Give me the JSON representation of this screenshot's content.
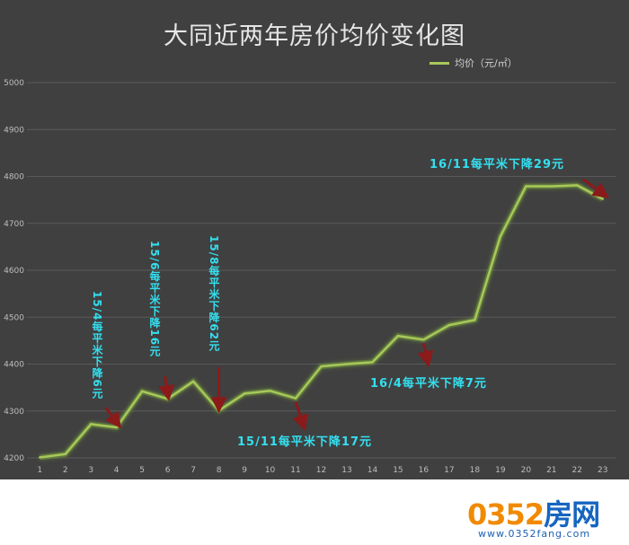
{
  "chart_data": {
    "type": "line",
    "title": "大同近两年房价均价变化图",
    "legend": {
      "label": "均价（元/㎡）",
      "position": "top-right"
    },
    "x": [
      1,
      2,
      3,
      4,
      5,
      6,
      7,
      8,
      9,
      10,
      11,
      12,
      13,
      14,
      15,
      16,
      17,
      18,
      19,
      20,
      21,
      22,
      23
    ],
    "series": [
      {
        "name": "均价（元/㎡）",
        "values": [
          4201,
          4208,
          4272,
          4265,
          4342,
          4326,
          4363,
          4301,
          4337,
          4343,
          4327,
          4395,
          4400,
          4404,
          4460,
          4452,
          4483,
          4494,
          4672,
          4779,
          4779,
          4781,
          4752
        ]
      }
    ],
    "ylim": [
      4200,
      5000
    ],
    "yticks": [
      4200,
      4300,
      4400,
      4500,
      4600,
      4700,
      4800,
      4900,
      5000
    ],
    "grid": true,
    "color": "#a8c85a",
    "annotations": [
      {
        "text": "15/4每平米下降6元",
        "arrow_at_x": 4,
        "direction": "down"
      },
      {
        "text": "15/6每平米下降16元",
        "arrow_at_x": 6,
        "direction": "down"
      },
      {
        "text": "15/8每平米下降62元",
        "arrow_at_x": 8,
        "direction": "down"
      },
      {
        "text": "15/11每平米下降17元",
        "arrow_at_x": 11,
        "direction": "down"
      },
      {
        "text": "16/4每平米下降7元",
        "arrow_at_x": 16,
        "direction": "down"
      },
      {
        "text": "16/11每平米下降29元",
        "arrow_at_x": 23,
        "direction": "down"
      }
    ]
  },
  "watermark": {
    "logo": "0352房网",
    "logo_digits": "0352",
    "logo_cn": "房网",
    "url": "www.0352fang.com"
  }
}
